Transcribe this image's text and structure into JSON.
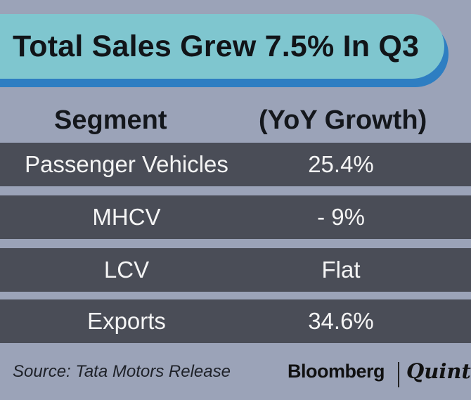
{
  "title": "Total Sales Grew 7.5% In Q3",
  "chart_data": {
    "type": "table",
    "title": "Total Sales Grew 7.5% In Q3",
    "columns": [
      "Segment",
      "(YoY Growth)"
    ],
    "rows": [
      {
        "segment": "Passenger Vehicles",
        "growth": "25.4%"
      },
      {
        "segment": "MHCV",
        "growth": "- 9%"
      },
      {
        "segment": "LCV",
        "growth": "Flat"
      },
      {
        "segment": "Exports",
        "growth": "34.6%"
      }
    ]
  },
  "footer": {
    "source": "Source: Tata Motors Release",
    "brand_primary": "Bloomberg",
    "brand_secondary": "Quint"
  },
  "colors": {
    "background": "#9ba3b8",
    "title_bar": "#7fc6cf",
    "title_shadow": "#2e7ec2",
    "row_fill": "#4a4d57",
    "row_text": "#f4f4f4"
  }
}
